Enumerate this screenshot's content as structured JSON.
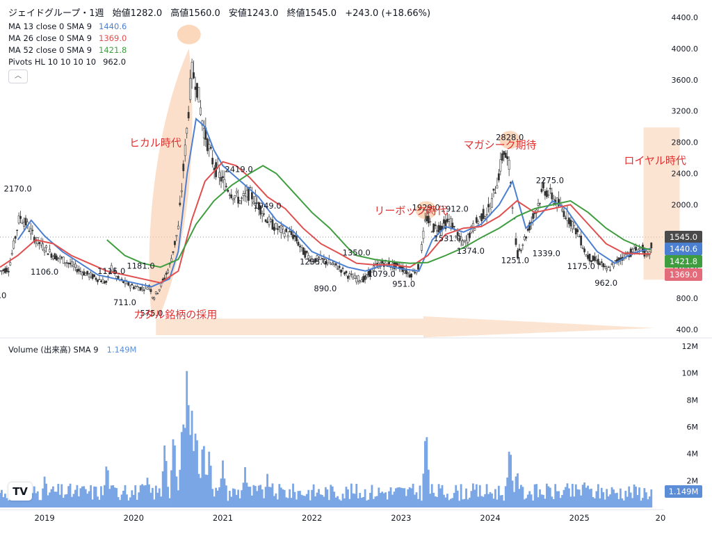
{
  "header": {
    "symbol": "ジェイドグループ・1週",
    "ohlc": [
      "始値1282.0",
      "高値1560.0",
      "安値1243.0",
      "終値1545.0",
      "+243.0 (+18.66%)"
    ],
    "indicators": [
      {
        "label": "MA 13 close 0 SMA 9",
        "value": "1440.6",
        "color": "#4a7fd1"
      },
      {
        "label": "MA 26 close 0 SMA 9",
        "value": "1369.0",
        "color": "#e04e4e"
      },
      {
        "label": "MA 52 close 0 SMA 9",
        "value": "1421.8",
        "color": "#3f9d3f"
      },
      {
        "label": "Pivots HL 10 10 10 10",
        "value": "962.0",
        "color": "#131722"
      }
    ],
    "collapse_icon": "chevron-up-icon"
  },
  "volume_header": {
    "label": "Volume (出来高) SMA 9",
    "value": "1.149M"
  },
  "colors": {
    "ma13": "#4a7fd1",
    "ma26": "#e04e4e",
    "ma52": "#3f9d3f",
    "volume": "#7aa6e6",
    "annotation": "#e03030",
    "highlight": "#f9c9a6",
    "last_price": "#4a4a4a",
    "ma26_tag": "#e46b7a"
  },
  "chart_data": {
    "type": "candlestick",
    "timeframe": "1週",
    "price_axis": {
      "ticks": [
        400,
        800,
        1200,
        1600,
        2000,
        2400,
        2800,
        3200,
        3600,
        4000,
        4400
      ],
      "tick_labels": [
        "400.0",
        "800.0",
        "1200.0",
        "1600.0",
        "2000.0",
        "2400.0",
        "2800.0",
        "3200.0",
        "3600.0",
        "4000.0",
        "4400.0"
      ],
      "range": [
        330,
        4480
      ]
    },
    "time_axis": {
      "labels": [
        "2019",
        "2020",
        "2021",
        "2022",
        "2023",
        "2024",
        "2025",
        "20"
      ],
      "range": [
        2018.5,
        2025.95
      ]
    },
    "price_path": [
      [
        2018.5,
        1150
      ],
      [
        2018.6,
        1180
      ],
      [
        2018.72,
        1850
      ],
      [
        2018.8,
        1750
      ],
      [
        2018.9,
        1550
      ],
      [
        2019.0,
        1450
      ],
      [
        2019.1,
        1350
      ],
      [
        2019.2,
        1300
      ],
      [
        2019.3,
        1230
      ],
      [
        2019.4,
        1150
      ],
      [
        2019.5,
        1100
      ],
      [
        2019.6,
        1050
      ],
      [
        2019.7,
        1000
      ],
      [
        2019.75,
        1200
      ],
      [
        2019.82,
        1050
      ],
      [
        2019.9,
        1000
      ],
      [
        2020.0,
        950
      ],
      [
        2020.1,
        930
      ],
      [
        2020.18,
        960
      ],
      [
        2020.22,
        800
      ],
      [
        2020.3,
        950
      ],
      [
        2020.4,
        1200
      ],
      [
        2020.5,
        1700
      ],
      [
        2020.6,
        3000
      ],
      [
        2020.65,
        3700
      ],
      [
        2020.7,
        3600
      ],
      [
        2020.78,
        3000
      ],
      [
        2020.85,
        2700
      ],
      [
        2020.9,
        2500
      ],
      [
        2021.0,
        2300
      ],
      [
        2021.1,
        2150
      ],
      [
        2021.2,
        2050
      ],
      [
        2021.3,
        2150
      ],
      [
        2021.4,
        2000
      ],
      [
        2021.5,
        1800
      ],
      [
        2021.6,
        1700
      ],
      [
        2021.7,
        1650
      ],
      [
        2021.8,
        1600
      ],
      [
        2021.9,
        1400
      ],
      [
        2022.0,
        1300
      ],
      [
        2022.1,
        1300
      ],
      [
        2022.2,
        1250
      ],
      [
        2022.3,
        1200
      ],
      [
        2022.4,
        1100
      ],
      [
        2022.5,
        1050
      ],
      [
        2022.6,
        1050
      ],
      [
        2022.7,
        1200
      ],
      [
        2022.8,
        1260
      ],
      [
        2022.9,
        1220
      ],
      [
        2023.0,
        1200
      ],
      [
        2023.1,
        1100
      ],
      [
        2023.2,
        1200
      ],
      [
        2023.28,
        1850
      ],
      [
        2023.35,
        1700
      ],
      [
        2023.45,
        1720
      ],
      [
        2023.55,
        1800
      ],
      [
        2023.65,
        1550
      ],
      [
        2023.72,
        1500
      ],
      [
        2023.8,
        1700
      ],
      [
        2023.9,
        1850
      ],
      [
        2024.0,
        1950
      ],
      [
        2024.1,
        2400
      ],
      [
        2024.15,
        2700
      ],
      [
        2024.22,
        2450
      ],
      [
        2024.3,
        1350
      ],
      [
        2024.4,
        1600
      ],
      [
        2024.5,
        1900
      ],
      [
        2024.6,
        2200
      ],
      [
        2024.7,
        2100
      ],
      [
        2024.8,
        1950
      ],
      [
        2024.9,
        1800
      ],
      [
        2025.0,
        1600
      ],
      [
        2025.08,
        1350
      ],
      [
        2025.15,
        1300
      ],
      [
        2025.25,
        1250
      ],
      [
        2025.3,
        1150
      ],
      [
        2025.4,
        1250
      ],
      [
        2025.5,
        1350
      ],
      [
        2025.6,
        1400
      ],
      [
        2025.7,
        1450
      ],
      [
        2025.78,
        1300
      ],
      [
        2025.82,
        1545
      ]
    ],
    "series": [
      {
        "name": "MA 13",
        "color": "#4a7fd1",
        "points": [
          [
            2018.7,
            1550
          ],
          [
            2018.85,
            1800
          ],
          [
            2019.0,
            1600
          ],
          [
            2019.2,
            1400
          ],
          [
            2019.4,
            1250
          ],
          [
            2019.6,
            1100
          ],
          [
            2019.8,
            1050
          ],
          [
            2020.0,
            1000
          ],
          [
            2020.2,
            950
          ],
          [
            2020.4,
            1050
          ],
          [
            2020.5,
            1400
          ],
          [
            2020.6,
            2400
          ],
          [
            2020.7,
            3100
          ],
          [
            2020.8,
            3000
          ],
          [
            2020.9,
            2700
          ],
          [
            2021.0,
            2500
          ],
          [
            2021.2,
            2300
          ],
          [
            2021.4,
            2100
          ],
          [
            2021.6,
            1800
          ],
          [
            2021.8,
            1650
          ],
          [
            2022.0,
            1400
          ],
          [
            2022.2,
            1300
          ],
          [
            2022.4,
            1200
          ],
          [
            2022.6,
            1150
          ],
          [
            2022.8,
            1230
          ],
          [
            2023.0,
            1180
          ],
          [
            2023.2,
            1150
          ],
          [
            2023.35,
            1550
          ],
          [
            2023.5,
            1720
          ],
          [
            2023.7,
            1650
          ],
          [
            2023.9,
            1750
          ],
          [
            2024.1,
            2000
          ],
          [
            2024.25,
            2300
          ],
          [
            2024.4,
            1700
          ],
          [
            2024.55,
            1850
          ],
          [
            2024.7,
            2050
          ],
          [
            2024.85,
            1950
          ],
          [
            2025.0,
            1700
          ],
          [
            2025.2,
            1400
          ],
          [
            2025.4,
            1250
          ],
          [
            2025.6,
            1380
          ],
          [
            2025.8,
            1440
          ]
        ]
      },
      {
        "name": "MA 26",
        "color": "#e04e4e",
        "points": [
          [
            2018.5,
            1200
          ],
          [
            2018.7,
            1350
          ],
          [
            2018.9,
            1550
          ],
          [
            2019.1,
            1500
          ],
          [
            2019.3,
            1350
          ],
          [
            2019.5,
            1250
          ],
          [
            2019.7,
            1150
          ],
          [
            2019.9,
            1100
          ],
          [
            2020.1,
            1050
          ],
          [
            2020.3,
            1000
          ],
          [
            2020.5,
            1150
          ],
          [
            2020.65,
            1800
          ],
          [
            2020.8,
            2300
          ],
          [
            2021.0,
            2550
          ],
          [
            2021.15,
            2500
          ],
          [
            2021.3,
            2350
          ],
          [
            2021.5,
            2100
          ],
          [
            2021.7,
            1950
          ],
          [
            2021.9,
            1700
          ],
          [
            2022.1,
            1500
          ],
          [
            2022.3,
            1380
          ],
          [
            2022.5,
            1250
          ],
          [
            2022.7,
            1230
          ],
          [
            2022.9,
            1230
          ],
          [
            2023.1,
            1200
          ],
          [
            2023.3,
            1350
          ],
          [
            2023.5,
            1620
          ],
          [
            2023.7,
            1700
          ],
          [
            2023.9,
            1720
          ],
          [
            2024.1,
            1850
          ],
          [
            2024.3,
            2050
          ],
          [
            2024.5,
            1900
          ],
          [
            2024.7,
            1950
          ],
          [
            2024.9,
            2000
          ],
          [
            2025.1,
            1750
          ],
          [
            2025.3,
            1500
          ],
          [
            2025.5,
            1380
          ],
          [
            2025.7,
            1370
          ],
          [
            2025.8,
            1369
          ]
        ]
      },
      {
        "name": "MA 52",
        "color": "#3f9d3f",
        "points": [
          [
            2019.7,
            1550
          ],
          [
            2019.9,
            1350
          ],
          [
            2020.1,
            1250
          ],
          [
            2020.3,
            1200
          ],
          [
            2020.5,
            1300
          ],
          [
            2020.7,
            1750
          ],
          [
            2020.9,
            2050
          ],
          [
            2021.1,
            2250
          ],
          [
            2021.3,
            2400
          ],
          [
            2021.45,
            2500
          ],
          [
            2021.6,
            2400
          ],
          [
            2021.8,
            2150
          ],
          [
            2022.0,
            1900
          ],
          [
            2022.2,
            1700
          ],
          [
            2022.4,
            1450
          ],
          [
            2022.5,
            1350
          ],
          [
            2022.7,
            1300
          ],
          [
            2022.9,
            1270
          ],
          [
            2023.1,
            1250
          ],
          [
            2023.3,
            1260
          ],
          [
            2023.5,
            1350
          ],
          [
            2023.7,
            1450
          ],
          [
            2023.9,
            1580
          ],
          [
            2024.1,
            1700
          ],
          [
            2024.3,
            1850
          ],
          [
            2024.5,
            1950
          ],
          [
            2024.7,
            2000
          ],
          [
            2024.9,
            2050
          ],
          [
            2025.1,
            1900
          ],
          [
            2025.3,
            1700
          ],
          [
            2025.5,
            1550
          ],
          [
            2025.7,
            1450
          ],
          [
            2025.8,
            1421.8
          ]
        ]
      }
    ],
    "pivot_labels": [
      {
        "text": "2170.0",
        "x": 2018.7,
        "price": 2170
      },
      {
        "text": "1106.0",
        "x": 2019.0,
        "price": 1106
      },
      {
        "text": "1115.0",
        "x": 2019.75,
        "price": 1115
      },
      {
        "text": "711.0",
        "x": 2019.9,
        "price": 711
      },
      {
        "text": "1181.0",
        "x": 2020.08,
        "price": 1181
      },
      {
        "text": "575.0",
        "x": 2020.2,
        "price": 575
      },
      {
        "text": "2419.0",
        "x": 2021.18,
        "price": 2419
      },
      {
        "text": "1949.0",
        "x": 2021.5,
        "price": 1949
      },
      {
        "text": "1235.0",
        "x": 2022.02,
        "price": 1235
      },
      {
        "text": "890.0",
        "x": 2022.15,
        "price": 890
      },
      {
        "text": "1350.0",
        "x": 2022.5,
        "price": 1350
      },
      {
        "text": "1079.0",
        "x": 2022.78,
        "price": 1079
      },
      {
        "text": "951.0",
        "x": 2023.03,
        "price": 951
      },
      {
        "text": "1929.0",
        "x": 2023.28,
        "price": 1929
      },
      {
        "text": "1912.0",
        "x": 2023.6,
        "price": 1912
      },
      {
        "text": "1531.0",
        "x": 2023.52,
        "price": 1531
      },
      {
        "text": "1374.0",
        "x": 2023.78,
        "price": 1374
      },
      {
        "text": "2828.0",
        "x": 2024.22,
        "price": 2828
      },
      {
        "text": "1251.0",
        "x": 2024.28,
        "price": 1251
      },
      {
        "text": "2275.0",
        "x": 2024.67,
        "price": 2275
      },
      {
        "text": "1339.0",
        "x": 2024.63,
        "price": 1339
      },
      {
        "text": "1175.0",
        "x": 2025.02,
        "price": 1175
      },
      {
        "text": "962.0",
        "x": 2025.3,
        "price": 962
      },
      {
        "text": ".0",
        "x": 2018.53,
        "price": 800
      }
    ],
    "annotations": [
      {
        "text": "ヒカル時代",
        "x": 2019.95,
        "price": 2750
      },
      {
        "text": "カタル銘柄の採用",
        "x": 2020.0,
        "price": 550
      },
      {
        "text": "リーボック時代",
        "x": 2022.7,
        "price": 1880
      },
      {
        "text": "マガシーク期待",
        "x": 2023.7,
        "price": 2720
      },
      {
        "text": "ロイヤル時代",
        "x": 2025.5,
        "price": 2520
      }
    ],
    "price_tags": [
      {
        "text": "1545.0",
        "price": 1545,
        "color": "#4a4a4a"
      },
      {
        "text": "1440.6",
        "price": 1440.6,
        "color": "#4a7fd1"
      },
      {
        "text": "1421.8",
        "price": 1421.8,
        "color": "#3f9d3f"
      },
      {
        "text": "1369.0",
        "price": 1369,
        "color": "#e46b7a"
      }
    ],
    "volume": {
      "axis_ticks": [
        2,
        4,
        6,
        8,
        10,
        12
      ],
      "tick_labels": [
        "2M",
        "4M",
        "6M",
        "8M",
        "10M",
        "12M"
      ],
      "range_millions": [
        0,
        12
      ],
      "last_value_label": "1.149M",
      "spikes": [
        [
          2019.0,
          2.3
        ],
        [
          2019.7,
          3.6
        ],
        [
          2019.9,
          1.8
        ],
        [
          2020.15,
          2.4
        ],
        [
          2020.35,
          5.0
        ],
        [
          2020.45,
          6.0
        ],
        [
          2020.55,
          7.3
        ],
        [
          2020.6,
          11.0
        ],
        [
          2020.65,
          7.8
        ],
        [
          2020.7,
          6.5
        ],
        [
          2020.78,
          5.5
        ],
        [
          2020.85,
          4.5
        ],
        [
          2021.0,
          3.5
        ],
        [
          2021.25,
          3.0
        ],
        [
          2021.5,
          2.5
        ],
        [
          2023.28,
          6.3
        ],
        [
          2024.22,
          5.0
        ],
        [
          2024.3,
          3.0
        ],
        [
          2025.05,
          2.2
        ]
      ]
    }
  }
}
